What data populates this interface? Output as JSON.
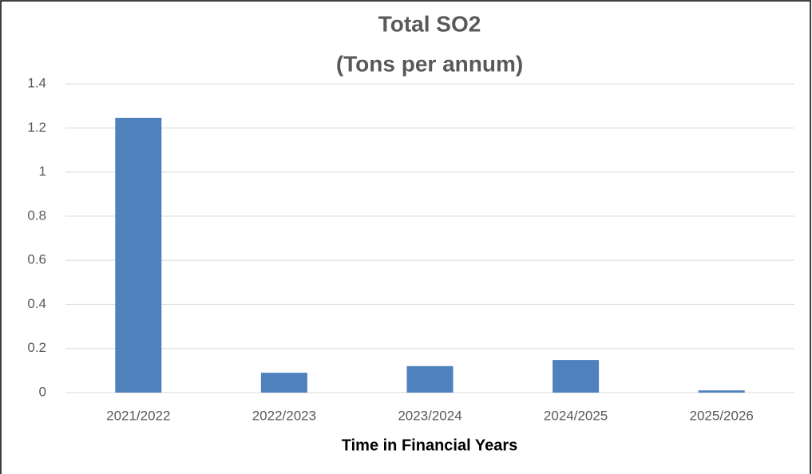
{
  "chart_data": {
    "type": "bar",
    "title": "Total SO2",
    "subtitle": "(Tons per annum)",
    "x_label": "Time in Financial Years",
    "categories": [
      "2021/2022",
      "2022/2023",
      "2023/2024",
      "2024/2025",
      "2025/2026"
    ],
    "values": [
      1.245,
      0.09,
      0.12,
      0.148,
      0.01
    ],
    "color": "#4f81bd",
    "ylim": [
      0,
      1.4
    ],
    "yticks": [
      0,
      0.2,
      0.4,
      0.6,
      0.8,
      1,
      1.2,
      1.4
    ],
    "grid": true
  }
}
